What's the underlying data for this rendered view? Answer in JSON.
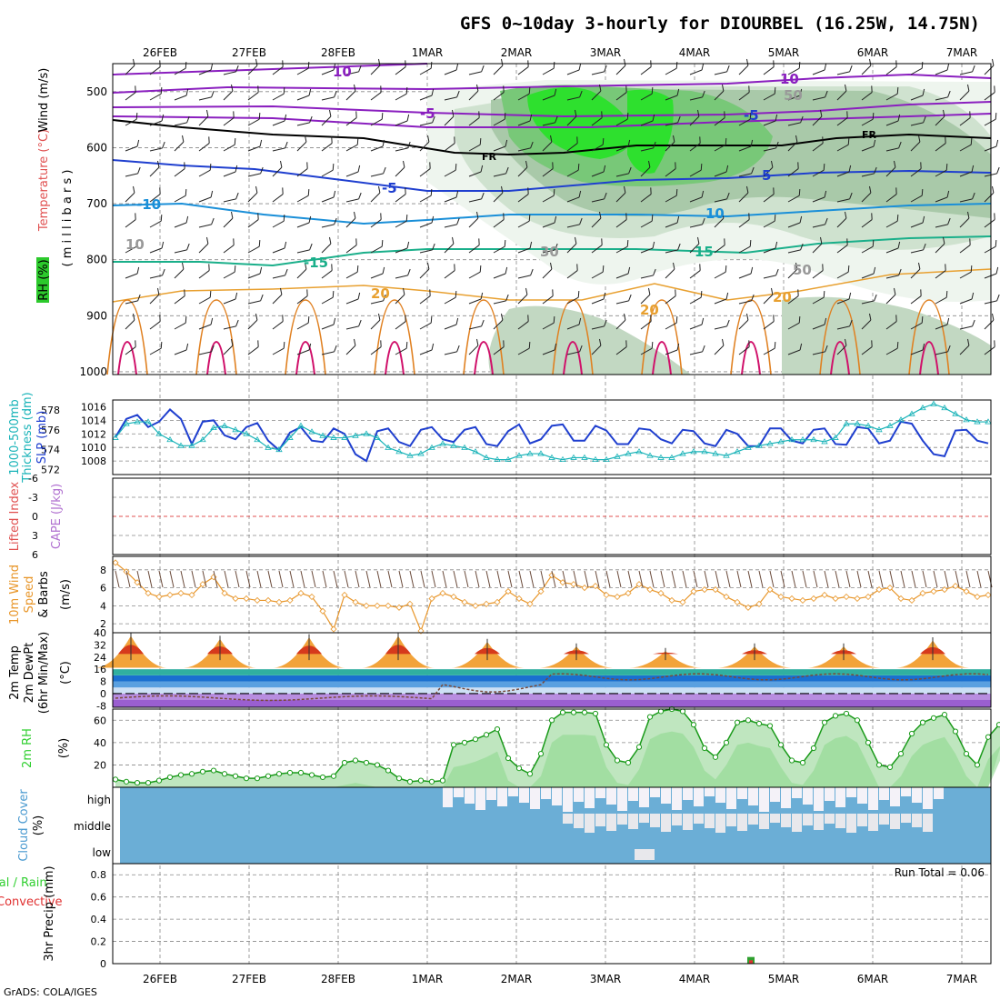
{
  "title": "GFS 0~10day 3-hourly for DIOURBEL (16.25W, 14.75N)",
  "credit": "GrADS: COLA/IGES",
  "dates": [
    "26FEB",
    "27FEB",
    "28FEB",
    "1MAR",
    "2MAR",
    "3MAR",
    "4MAR",
    "5MAR",
    "6MAR",
    "7MAR"
  ],
  "colors": {
    "slp": "#1f3fcf",
    "thick": "#19b3b8",
    "wind": "#e8962a",
    "rh": "#2fcf2f",
    "cloud": "#6baed6",
    "cape_zero": "#e05050"
  },
  "panels": {
    "upper": {
      "label_rh": "RH (%)",
      "label_temp": "Temperature (°C)",
      "label_wind": "Wind (m/s)",
      "label_mb": "( m i l l i b a r s )",
      "yticks": [
        "500",
        "600",
        "700",
        "800",
        "900",
        "1000"
      ],
      "contour_labels": [
        "10",
        "-5",
        "-5",
        "10",
        "FR",
        "FR",
        "-5",
        "5",
        "10",
        "-10",
        "15",
        "-15",
        "20",
        "20",
        "20",
        "10",
        "30",
        "50",
        "50"
      ]
    },
    "slp": {
      "label_a": "1000-500mb",
      "label_b": "Thickness (dm)",
      "label_c": "SLP (mb)",
      "left_ticks": [
        "578",
        "576",
        "574",
        "572"
      ],
      "right_ticks": [
        "1016",
        "1014",
        "1012",
        "1010",
        "1008"
      ]
    },
    "cape": {
      "label_a": "Lifted Index",
      "label_b": "CAPE (J/kg)",
      "ticks": [
        "-6",
        "-3",
        "0",
        "3",
        "6"
      ]
    },
    "wind10": {
      "label_a": "10m Wind",
      "label_b": "Speed",
      "label_c": "& Barbs",
      "unit": "(m/s)",
      "ticks": [
        "8",
        "6",
        "4",
        "2"
      ]
    },
    "temp": {
      "label_a": "2m Temp",
      "label_b": "2m DewPt",
      "label_c": "(6hr Min/Max)",
      "unit": "(°C)",
      "ticks": [
        "40",
        "32",
        "24",
        "16",
        "8",
        "0",
        "-8"
      ]
    },
    "rh2m": {
      "label": "2m RH",
      "unit": "(%)",
      "ticks": [
        "60",
        "40",
        "20"
      ]
    },
    "cloud": {
      "label": "Cloud Cover",
      "unit": "(%)",
      "levels": [
        "high",
        "middle",
        "low"
      ]
    },
    "precip": {
      "label_a": "Total / Rain",
      "label_b": "Convective",
      "label_c": "3hr Precip (mm)",
      "ticks": [
        "0.8",
        "0.6",
        "0.4",
        "0.2",
        "0"
      ],
      "run_total": "Run Total = 0.06"
    }
  },
  "chart_data": [
    {
      "type": "line",
      "title": "SLP (mb)",
      "ylim": [
        1006,
        1017
      ],
      "series": [
        {
          "name": "SLP",
          "values": [
            1011.5,
            1014.2,
            1014.8,
            1013,
            1013.8,
            1015.6,
            1014.2,
            1010.5,
            1013.8,
            1014,
            1011.8,
            1011.2,
            1013,
            1013.6,
            1011,
            1009.6,
            1012.2,
            1013,
            1011,
            1010.8,
            1012.8,
            1012,
            1009,
            1008,
            1012.4,
            1012.8,
            1010.8,
            1010.2,
            1012.6,
            1013,
            1011.2,
            1010.8,
            1012.6,
            1013,
            1010.5,
            1010.2,
            1012.4,
            1013.4,
            1010.6,
            1011.2,
            1013.2,
            1013.4,
            1011,
            1011,
            1013.2,
            1012.5,
            1010.5,
            1010.5,
            1012.8,
            1012.6,
            1011.2,
            1010.6,
            1012.6,
            1012.4,
            1010.6,
            1010.2,
            1012.6,
            1012,
            1010.2,
            1010.2,
            1012.8,
            1012.8,
            1011,
            1010.6,
            1012.6,
            1012.8,
            1010.5,
            1010.4,
            1013,
            1012.8,
            1010.6,
            1011,
            1013.8,
            1013.5,
            1011,
            1009,
            1008.7,
            1012.5,
            1012.6,
            1011,
            1010.6
          ]
        }
      ]
    },
    {
      "type": "line",
      "title": "1000-500mb Thickness (dm)",
      "ylim": [
        571.5,
        579
      ],
      "series": [
        {
          "name": "Thickness",
          "values": [
            575.2,
            576.6,
            576.8,
            576.8,
            575.6,
            575,
            574.4,
            574.4,
            575,
            576.2,
            576.4,
            576,
            575.6,
            575,
            574.2,
            574,
            575.2,
            576.4,
            575.8,
            575.4,
            575.2,
            575.2,
            575.4,
            575.6,
            575.2,
            574.2,
            573.8,
            573.4,
            573.6,
            574.2,
            574.6,
            574.4,
            574.2,
            573.8,
            573.2,
            573,
            573,
            573.4,
            573.6,
            573.6,
            573.2,
            573,
            573.2,
            573.2,
            573,
            573,
            573.3,
            573.6,
            573.8,
            573.4,
            573.2,
            573.2,
            573.6,
            573.8,
            573.8,
            573.6,
            573.4,
            573.8,
            574.2,
            574.4,
            574.6,
            574.8,
            575,
            575,
            575,
            574.8,
            575.2,
            576.6,
            576.6,
            576.4,
            576,
            576.4,
            577,
            577.6,
            578.2,
            578.6,
            578.2,
            577.6,
            577,
            576.8,
            576.8
          ]
        }
      ]
    },
    {
      "type": "line",
      "title": "10m Wind Speed (m/s)",
      "ylim": [
        1,
        9.5
      ],
      "series": [
        {
          "name": "Speed",
          "values": [
            8.8,
            7.8,
            6.6,
            5.4,
            5,
            5.2,
            5.4,
            5.2,
            6.4,
            7.2,
            5.4,
            4.8,
            4.8,
            4.6,
            4.6,
            4.4,
            4.6,
            5.4,
            5,
            3.4,
            1.4,
            5.2,
            4.4,
            4,
            4,
            4,
            3.8,
            4.2,
            1.2,
            4.8,
            5.4,
            5,
            4.4,
            4,
            4.2,
            4.4,
            5.6,
            4.8,
            4.2,
            5.6,
            7.4,
            6.6,
            6.4,
            6,
            6.2,
            5.2,
            5,
            5.4,
            6.4,
            5.8,
            5.4,
            4.6,
            4.4,
            5.6,
            5.8,
            5.8,
            5,
            4.4,
            3.8,
            4.2,
            5.8,
            5,
            4.8,
            4.6,
            4.8,
            5.2,
            4.8,
            5,
            4.8,
            5,
            5.8,
            6,
            4.8,
            4.6,
            5.4,
            5.6,
            5.8,
            6.2,
            5.6,
            5,
            5.2
          ]
        }
      ]
    },
    {
      "type": "area",
      "title": "2m RH (%)",
      "ylim": [
        0,
        70
      ],
      "series": [
        {
          "name": "RH",
          "values": [
            7,
            5,
            4,
            4,
            6,
            9,
            11,
            12,
            14,
            15,
            12,
            10,
            8,
            8,
            10,
            12,
            13,
            13,
            11,
            9,
            10,
            22,
            24,
            22,
            20,
            15,
            8,
            5,
            6,
            5,
            6,
            38,
            40,
            43,
            47,
            52,
            26,
            17,
            12,
            30,
            60,
            67,
            67,
            67,
            66,
            38,
            24,
            22,
            36,
            63,
            68,
            70,
            68,
            56,
            35,
            27,
            40,
            58,
            60,
            57,
            55,
            38,
            24,
            22,
            35,
            58,
            64,
            66,
            60,
            40,
            20,
            18,
            30,
            48,
            58,
            62,
            65,
            50,
            30,
            20,
            45,
            56,
            64
          ]
        }
      ]
    },
    {
      "type": "bar",
      "title": "3hr Precip (mm)",
      "ylim": [
        0,
        0.9
      ],
      "categories": [
        "4.6MAR"
      ],
      "series": [
        {
          "name": "Total",
          "values": [
            0.06
          ]
        },
        {
          "name": "Convective",
          "values": [
            0.03
          ]
        }
      ]
    }
  ]
}
